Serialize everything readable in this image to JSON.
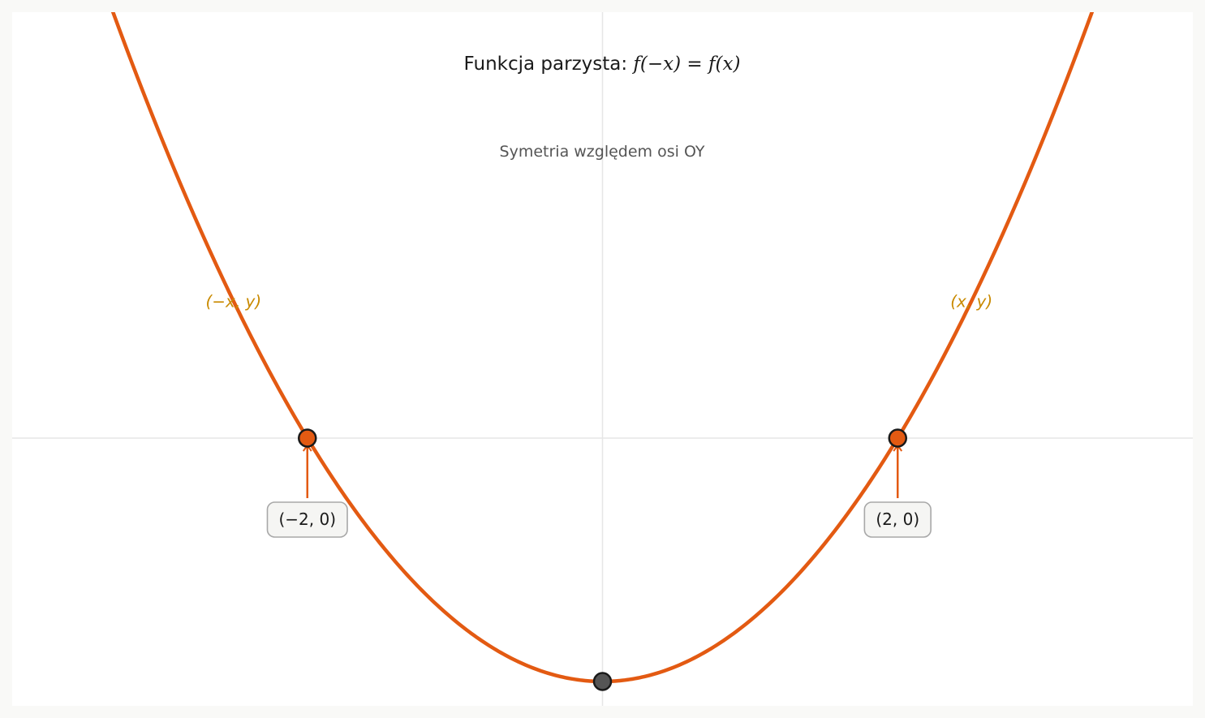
{
  "chart_data": {
    "type": "line",
    "title_prefix": "Funkcja parzysta: ",
    "title_math": "f(−x) = f(x)",
    "subtitle": "Symetria względem osi OY",
    "xlim": [
      -4,
      4
    ],
    "ylim": [
      -4.4,
      7.0
    ],
    "grid": false,
    "axes_lines": "x=0, y=0",
    "series": [
      {
        "function": "x^2 - 4",
        "color": "#e35a12",
        "x": [
          -3.35,
          -3.2,
          -3.0,
          -2.8,
          -2.6,
          -2.4,
          -2.2,
          -2.0,
          -1.8,
          -1.6,
          -1.4,
          -1.2,
          -1.0,
          -0.8,
          -0.6,
          -0.4,
          -0.2,
          0.0,
          0.2,
          0.4,
          0.6,
          0.8,
          1.0,
          1.2,
          1.4,
          1.6,
          1.8,
          2.0,
          2.2,
          2.4,
          2.6,
          2.8,
          3.0,
          3.2,
          3.35
        ],
        "y": [
          7.2225,
          6.24,
          5.0,
          3.84,
          2.76,
          1.76,
          0.84,
          0.0,
          -0.76,
          -1.44,
          -2.04,
          -2.56,
          -3.0,
          -3.36,
          -3.64,
          -3.84,
          -3.96,
          -4.0,
          -3.96,
          -3.84,
          -3.64,
          -3.36,
          -3.0,
          -2.56,
          -2.04,
          -1.44,
          -0.76,
          0.0,
          0.84,
          1.76,
          2.76,
          3.84,
          5.0,
          6.24,
          7.2225
        ]
      }
    ],
    "points": [
      {
        "x": -2,
        "y": 0,
        "fill": "#e35a12",
        "label": "(−2, 0)"
      },
      {
        "x": 2,
        "y": 0,
        "fill": "#e35a12",
        "label": "(2, 0)"
      },
      {
        "x": 0,
        "y": -4,
        "fill": "#555555"
      }
    ],
    "annotations": [
      {
        "text": "(−x, y)",
        "x": -2.5,
        "y": 2.25,
        "color": "#c98a00"
      },
      {
        "text": "(x, y)",
        "x": 2.5,
        "y": 2.25,
        "color": "#c98a00"
      }
    ]
  }
}
